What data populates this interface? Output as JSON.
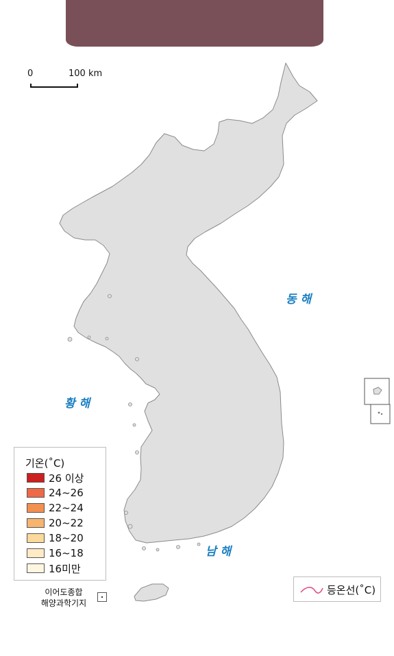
{
  "scale": {
    "zero": "0",
    "distance": "100 km"
  },
  "seas": {
    "east": "동 해",
    "west": "황 해",
    "south": "남 해"
  },
  "legend": {
    "title": "기온(˚C)",
    "items": [
      {
        "label": "26 이상",
        "color": "#cc1f1f"
      },
      {
        "label": "24~26",
        "color": "#ee6a46"
      },
      {
        "label": "22~24",
        "color": "#f3904f"
      },
      {
        "label": "20~22",
        "color": "#f6b46f"
      },
      {
        "label": "18~20",
        "color": "#fbd89c"
      },
      {
        "label": "16~18",
        "color": "#feebc6"
      },
      {
        "label": "16미만",
        "color": "#fff6e2"
      }
    ]
  },
  "isotherm_legend": {
    "label": "등온선(˚C)",
    "color": "#e0508a"
  },
  "ieodo_label": [
    "이어도종합",
    "해양과학기지"
  ],
  "colors": {
    "land": "#e0e0e0",
    "coast": "#8a8a8a",
    "banner": "#7a5058",
    "sea_label": "#1a7fc1"
  }
}
